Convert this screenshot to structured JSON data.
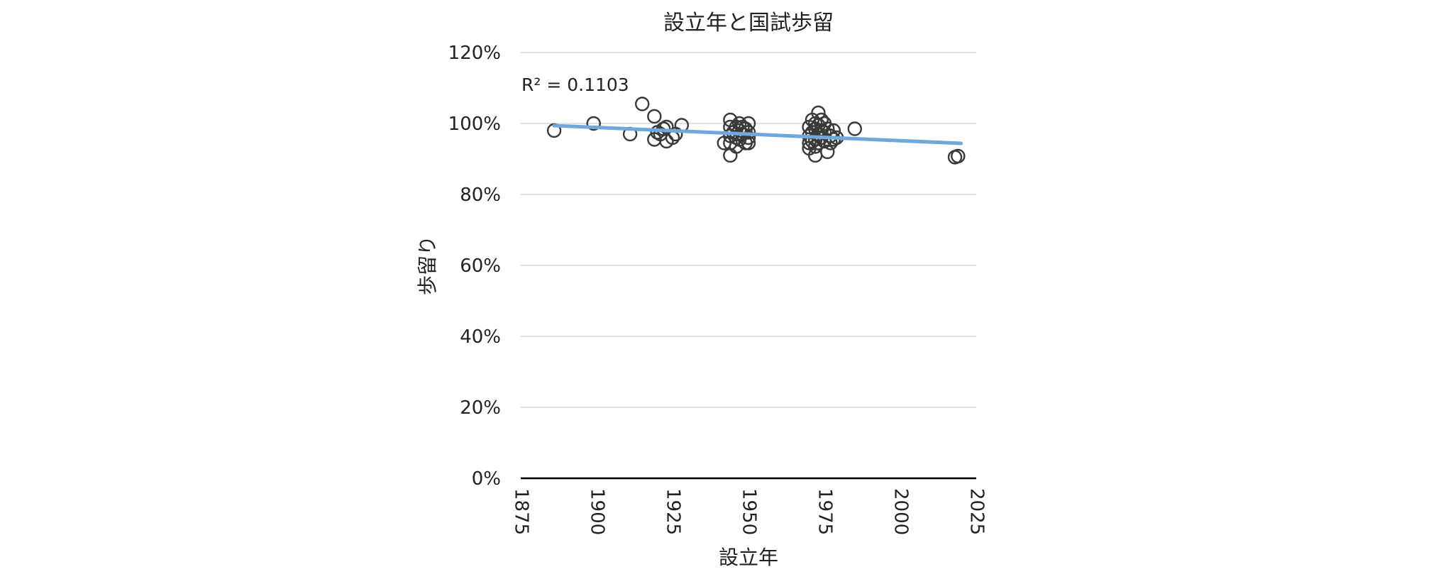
{
  "chart_data": {
    "type": "scatter",
    "title": "設立年と国試歩留",
    "xlabel": "設立年",
    "ylabel": "歩留り",
    "xlim": [
      1875,
      2025
    ],
    "ylim": [
      0,
      1.2
    ],
    "x_ticks": [
      "1875",
      "1900",
      "1925",
      "1950",
      "1975",
      "2000",
      "2025"
    ],
    "y_ticks": [
      "0%",
      "20%",
      "40%",
      "60%",
      "80%",
      "100%",
      "120%"
    ],
    "grid": true,
    "legend": "none",
    "colors": {
      "marker_stroke": "#3a3a3a",
      "trendline": "#6fa8dc",
      "grid": "#d9d9d9",
      "axis": "#000000"
    },
    "annotation": "R² = 0.1103",
    "trendline": {
      "type": "linear",
      "from": [
        1886,
        0.994
      ],
      "to": [
        2020,
        0.944
      ]
    },
    "series": [
      {
        "points": [
          [
            1886,
            0.98
          ],
          [
            1899,
            1.0
          ],
          [
            1911,
            0.97
          ],
          [
            1915,
            1.055
          ],
          [
            1919,
            1.02
          ],
          [
            1919,
            0.955
          ],
          [
            1920,
            0.975
          ],
          [
            1921,
            0.97
          ],
          [
            1922,
            0.985
          ],
          [
            1923,
            0.99
          ],
          [
            1923,
            0.95
          ],
          [
            1925,
            0.96
          ],
          [
            1926,
            0.97
          ],
          [
            1928,
            0.995
          ],
          [
            1942,
            0.945
          ],
          [
            1944,
            1.01
          ],
          [
            1944,
            0.99
          ],
          [
            1944,
            0.965
          ],
          [
            1944,
            0.945
          ],
          [
            1944,
            0.91
          ],
          [
            1945,
            0.975
          ],
          [
            1946,
            0.99
          ],
          [
            1946,
            0.96
          ],
          [
            1946,
            0.935
          ],
          [
            1947,
            1.0
          ],
          [
            1947,
            0.98
          ],
          [
            1947,
            0.955
          ],
          [
            1948,
            0.99
          ],
          [
            1948,
            0.97
          ],
          [
            1949,
            0.945
          ],
          [
            1949,
            0.985
          ],
          [
            1950,
            1.0
          ],
          [
            1950,
            0.975
          ],
          [
            1950,
            0.96
          ],
          [
            1950,
            0.945
          ],
          [
            1970,
            0.99
          ],
          [
            1970,
            0.965
          ],
          [
            1970,
            0.945
          ],
          [
            1970,
            0.93
          ],
          [
            1971,
            1.01
          ],
          [
            1971,
            0.975
          ],
          [
            1971,
            0.95
          ],
          [
            1972,
            1.0
          ],
          [
            1972,
            0.985
          ],
          [
            1972,
            0.955
          ],
          [
            1972,
            0.935
          ],
          [
            1972,
            0.91
          ],
          [
            1973,
            1.03
          ],
          [
            1973,
            0.995
          ],
          [
            1973,
            0.97
          ],
          [
            1973,
            0.945
          ],
          [
            1974,
            1.01
          ],
          [
            1974,
            0.98
          ],
          [
            1974,
            0.96
          ],
          [
            1975,
            1.0
          ],
          [
            1975,
            0.975
          ],
          [
            1975,
            0.95
          ],
          [
            1976,
            0.985
          ],
          [
            1976,
            0.92
          ],
          [
            1977,
            0.965
          ],
          [
            1977,
            0.945
          ],
          [
            1978,
            0.98
          ],
          [
            1978,
            0.955
          ],
          [
            1979,
            0.96
          ],
          [
            1985,
            0.985
          ],
          [
            2018,
            0.905
          ],
          [
            2019,
            0.908
          ]
        ]
      }
    ]
  }
}
